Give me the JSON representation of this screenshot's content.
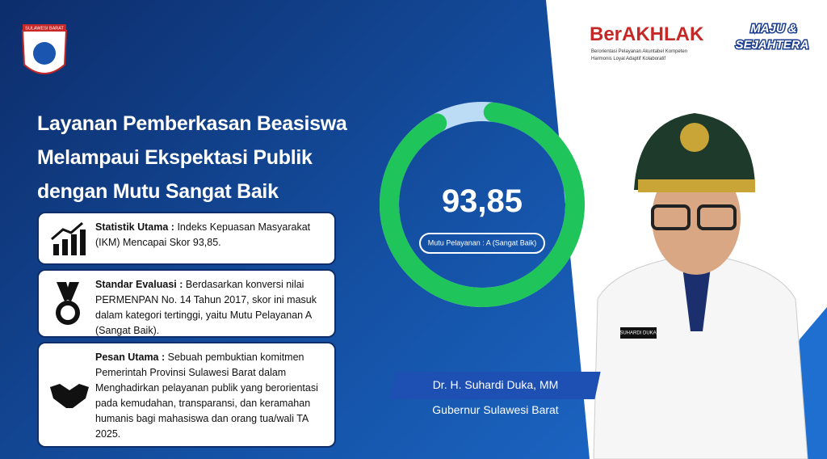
{
  "logo": {
    "text": "SULAWESI BARAT"
  },
  "brand": {
    "name": "BerAKHLAK",
    "tagline": [
      "Berorientasi Pelayanan Akuntabel Kompeten",
      "Harmonis Loyal Adaptif Kolaboratif"
    ]
  },
  "slogan": [
    "MAJU &",
    "SEJAHTERA"
  ],
  "title": [
    "Layanan Pemberkasan Beasiswa",
    "Melampaui Ekspektasi Publik",
    "dengan Mutu Sangat Baik"
  ],
  "cards": [
    {
      "label": "Statistik Utama :",
      "text": "Indeks Kepuasan Masyarakat (IKM) Mencapai Skor 93,85."
    },
    {
      "label": "Standar Evaluasi :",
      "text": "Berdasarkan konversi nilai PERMENPAN No. 14 Tahun 2017, skor ini masuk dalam kategori tertinggi, yaitu Mutu Pelayanan A (Sangat Baik)."
    },
    {
      "label": "Pesan Utama :",
      "text": "Sebuah pembuktian komitmen Pemerintah Provinsi Sulawesi Barat dalam Menghadirkan pelayanan publik yang berorientasi pada kemudahan, transparansi, dan keramahan humanis bagi mahasiswa dan orang tua/wali TA 2025."
    }
  ],
  "gauge": {
    "value": 93.85,
    "label": "93,85",
    "lim": [
      0,
      100
    ],
    "caption": "Mutu Pelayanan : A (Sangat Baik)"
  },
  "person": {
    "name": "Dr. H. Suhardi Duka, MM",
    "role": "Gubernur Sulawesi Barat",
    "badge": "SUHARDI DUKA"
  }
}
